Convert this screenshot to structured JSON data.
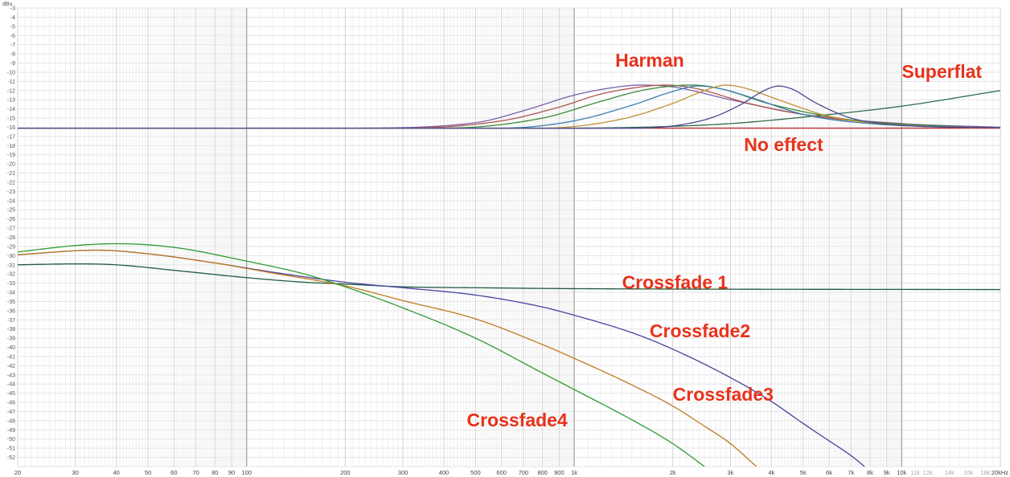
{
  "chart_data": {
    "type": "line",
    "title": "",
    "xlabel": "",
    "ylabel": "dBu",
    "x_scale": "log",
    "xlim": [
      20,
      20000
    ],
    "ylim": [
      -53,
      -3
    ],
    "grid": true,
    "legend": "none",
    "y_ticks": [
      -3,
      -4,
      -5,
      -6,
      -7,
      -8,
      -9,
      -10,
      -11,
      -12,
      -13,
      -14,
      -15,
      -16,
      -17,
      -18,
      -19,
      -20,
      -21,
      -22,
      -23,
      -24,
      -25,
      -26,
      -27,
      -28,
      -29,
      -30,
      -31,
      -32,
      -33,
      -34,
      -35,
      -36,
      -37,
      -38,
      -39,
      -40,
      -41,
      -42,
      -43,
      -44,
      -45,
      -46,
      -47,
      -48,
      -49,
      -50,
      -51,
      -52
    ],
    "x_ticks": [
      {
        "value": 20,
        "label": "20"
      },
      {
        "value": 30,
        "label": "30"
      },
      {
        "value": 40,
        "label": "40"
      },
      {
        "value": 50,
        "label": "50"
      },
      {
        "value": 60,
        "label": "60"
      },
      {
        "value": 70,
        "label": "70"
      },
      {
        "value": 80,
        "label": "80"
      },
      {
        "value": 90,
        "label": "90"
      },
      {
        "value": 100,
        "label": "100"
      },
      {
        "value": 200,
        "label": "200"
      },
      {
        "value": 300,
        "label": "300"
      },
      {
        "value": 400,
        "label": "400"
      },
      {
        "value": 500,
        "label": "500"
      },
      {
        "value": 600,
        "label": "600"
      },
      {
        "value": 700,
        "label": "700"
      },
      {
        "value": 800,
        "label": "800"
      },
      {
        "value": 900,
        "label": "900"
      },
      {
        "value": 1000,
        "label": "1k"
      },
      {
        "value": 2000,
        "label": "2k"
      },
      {
        "value": 3000,
        "label": "3k"
      },
      {
        "value": 4000,
        "label": "4k"
      },
      {
        "value": 5000,
        "label": "5k"
      },
      {
        "value": 6000,
        "label": "6k"
      },
      {
        "value": 7000,
        "label": "7k"
      },
      {
        "value": 8000,
        "label": "8k"
      },
      {
        "value": 9000,
        "label": "9k"
      },
      {
        "value": 10000,
        "label": "10k"
      },
      {
        "value": 11000,
        "label": "11k",
        "faint": true
      },
      {
        "value": 12000,
        "label": "12k",
        "faint": true
      },
      {
        "value": 14000,
        "label": "14k",
        "faint": true
      },
      {
        "value": 16000,
        "label": "16k",
        "faint": true
      },
      {
        "value": 18000,
        "label": "18k",
        "faint": true
      },
      {
        "value": 20000,
        "label": "20kHz"
      }
    ],
    "annotations": [
      {
        "text": "Harman",
        "x": 1700,
        "y": -9.4,
        "anchor": "middle"
      },
      {
        "text": "Superflat",
        "x": 10000,
        "y": -10.6,
        "anchor": "start"
      },
      {
        "text": "No effect",
        "x": 3300,
        "y": -18.6,
        "anchor": "start"
      },
      {
        "text": "Crossfade 1",
        "x": 1400,
        "y": -33.6,
        "anchor": "start"
      },
      {
        "text": "Crossfade2",
        "x": 1700,
        "y": -38.9,
        "anchor": "start"
      },
      {
        "text": "Crossfade3",
        "x": 2000,
        "y": -45.8,
        "anchor": "start"
      },
      {
        "text": "Crossfade4",
        "x": 470,
        "y": -48.6,
        "anchor": "start"
      }
    ],
    "series": [
      {
        "color": "#c62828",
        "points": [
          [
            20,
            -16.1
          ],
          [
            20000,
            -16.1
          ]
        ]
      },
      {
        "color": "#2e6b4f",
        "points": [
          [
            20,
            -16.1
          ],
          [
            1000,
            -16.1
          ],
          [
            2000,
            -15.9
          ],
          [
            3000,
            -15.6
          ],
          [
            5000,
            -14.9
          ],
          [
            10000,
            -13.7
          ],
          [
            20000,
            -12.0
          ]
        ]
      },
      {
        "color": "#7a5fa8",
        "points": [
          [
            20,
            -16.1
          ],
          [
            200,
            -16.1
          ],
          [
            500,
            -15.5
          ],
          [
            700,
            -14.2
          ],
          [
            1000,
            -12.5
          ],
          [
            1300,
            -11.7
          ],
          [
            1600,
            -11.4
          ],
          [
            2000,
            -11.6
          ],
          [
            3000,
            -13.0
          ],
          [
            5000,
            -14.6
          ],
          [
            10000,
            -15.6
          ],
          [
            20000,
            -16.0
          ]
        ]
      },
      {
        "color": "#b0554e",
        "points": [
          [
            20,
            -16.1
          ],
          [
            300,
            -16.1
          ],
          [
            600,
            -15.3
          ],
          [
            900,
            -13.8
          ],
          [
            1200,
            -12.4
          ],
          [
            1600,
            -11.6
          ],
          [
            1900,
            -11.4
          ],
          [
            2300,
            -11.7
          ],
          [
            3500,
            -13.5
          ],
          [
            6000,
            -15.0
          ],
          [
            12000,
            -15.8
          ],
          [
            20000,
            -16.05
          ]
        ]
      },
      {
        "color": "#3b8a3b",
        "points": [
          [
            20,
            -16.1
          ],
          [
            400,
            -16.1
          ],
          [
            800,
            -15.0
          ],
          [
            1200,
            -13.2
          ],
          [
            1600,
            -12.0
          ],
          [
            2000,
            -11.5
          ],
          [
            2300,
            -11.4
          ],
          [
            2800,
            -11.8
          ],
          [
            4000,
            -13.5
          ],
          [
            7000,
            -15.2
          ],
          [
            14000,
            -15.9
          ],
          [
            20000,
            -16.05
          ]
        ]
      },
      {
        "color": "#3a80b0",
        "points": [
          [
            20,
            -16.1
          ],
          [
            600,
            -16.1
          ],
          [
            1000,
            -15.3
          ],
          [
            1500,
            -13.6
          ],
          [
            2000,
            -12.1
          ],
          [
            2400,
            -11.5
          ],
          [
            2800,
            -11.8
          ],
          [
            3500,
            -12.8
          ],
          [
            5000,
            -14.6
          ],
          [
            8000,
            -15.6
          ],
          [
            20000,
            -16.05
          ]
        ]
      },
      {
        "color": "#c09030",
        "points": [
          [
            20,
            -16.1
          ],
          [
            800,
            -16.1
          ],
          [
            1400,
            -15.1
          ],
          [
            2000,
            -13.4
          ],
          [
            2500,
            -12.0
          ],
          [
            2900,
            -11.4
          ],
          [
            3300,
            -11.7
          ],
          [
            4200,
            -13.0
          ],
          [
            6000,
            -14.8
          ],
          [
            10000,
            -15.8
          ],
          [
            20000,
            -16.05
          ]
        ]
      },
      {
        "color": "#4a4a90",
        "points": [
          [
            20,
            -16.1
          ],
          [
            1500,
            -16.1
          ],
          [
            2500,
            -15.2
          ],
          [
            3200,
            -13.6
          ],
          [
            3800,
            -12.0
          ],
          [
            4200,
            -11.5
          ],
          [
            4600,
            -11.8
          ],
          [
            5500,
            -13.4
          ],
          [
            7000,
            -15.0
          ],
          [
            10000,
            -15.8
          ],
          [
            20000,
            -16.05
          ]
        ]
      },
      {
        "color": "#1f5a3a",
        "points": [
          [
            20,
            -31.0
          ],
          [
            30,
            -30.9
          ],
          [
            40,
            -31.0
          ],
          [
            60,
            -31.6
          ],
          [
            100,
            -32.4
          ],
          [
            150,
            -32.9
          ],
          [
            200,
            -33.1
          ],
          [
            300,
            -33.4
          ],
          [
            500,
            -33.5
          ],
          [
            1000,
            -33.6
          ],
          [
            20000,
            -33.7
          ]
        ]
      },
      {
        "color": "#4a42a0",
        "points": [
          [
            20,
            -29.9
          ],
          [
            35,
            -29.4
          ],
          [
            50,
            -29.8
          ],
          [
            80,
            -30.8
          ],
          [
            120,
            -31.8
          ],
          [
            200,
            -32.9
          ],
          [
            300,
            -33.5
          ],
          [
            500,
            -34.3
          ],
          [
            800,
            -35.6
          ],
          [
            1000,
            -36.5
          ],
          [
            1500,
            -38.4
          ],
          [
            2000,
            -40.2
          ],
          [
            3000,
            -43.3
          ],
          [
            4000,
            -45.9
          ],
          [
            5000,
            -48.3
          ],
          [
            6000,
            -50.2
          ],
          [
            7000,
            -51.8
          ],
          [
            7700,
            -53.0
          ]
        ]
      },
      {
        "color": "#c07a20",
        "points": [
          [
            20,
            -29.9
          ],
          [
            35,
            -29.4
          ],
          [
            50,
            -29.8
          ],
          [
            80,
            -30.8
          ],
          [
            120,
            -31.9
          ],
          [
            200,
            -33.3
          ],
          [
            300,
            -34.9
          ],
          [
            500,
            -36.9
          ],
          [
            800,
            -39.7
          ],
          [
            1000,
            -41.2
          ],
          [
            1500,
            -44.1
          ],
          [
            2000,
            -46.4
          ],
          [
            2500,
            -48.6
          ],
          [
            3000,
            -50.5
          ],
          [
            3600,
            -53.0
          ]
        ]
      },
      {
        "color": "#2f9a35",
        "points": [
          [
            20,
            -29.6
          ],
          [
            30,
            -28.9
          ],
          [
            40,
            -28.7
          ],
          [
            60,
            -29.1
          ],
          [
            100,
            -30.6
          ],
          [
            150,
            -32.0
          ],
          [
            200,
            -33.4
          ],
          [
            300,
            -35.7
          ],
          [
            500,
            -39.0
          ],
          [
            800,
            -42.8
          ],
          [
            1000,
            -44.6
          ],
          [
            1500,
            -47.9
          ],
          [
            2000,
            -50.5
          ],
          [
            2500,
            -53.0
          ]
        ]
      }
    ]
  }
}
